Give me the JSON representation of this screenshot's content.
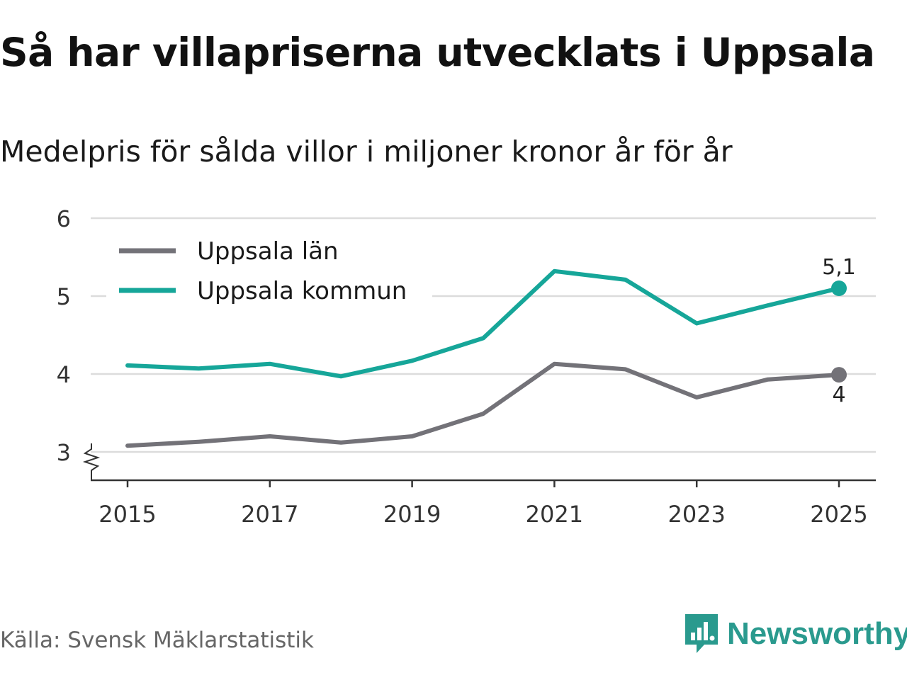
{
  "title": "Så har villapriserna utvecklats i Uppsala",
  "subtitle": "Medelpris för sålda villor i miljoner kronor år för år",
  "source": "Källa: Svensk Mäklarstatistik",
  "brand": {
    "name": "Newsworthy",
    "icon": "newsworthy-logo-icon",
    "color": "#2a9a8e"
  },
  "chart_data": {
    "type": "line",
    "title": "Så har villapriserna utvecklats i Uppsala",
    "subtitle": "Medelpris för sålda villor i miljoner kronor år för år",
    "xlabel": "",
    "ylabel": "",
    "x": [
      2015,
      2016,
      2017,
      2018,
      2019,
      2020,
      2021,
      2022,
      2023,
      2024,
      2025
    ],
    "xticks": [
      2015,
      2017,
      2019,
      2021,
      2023,
      2025
    ],
    "xtick_labels": [
      "2015",
      "2017",
      "2019",
      "2021",
      "2023",
      "2025"
    ],
    "ylim": [
      3,
      6
    ],
    "yticks": [
      3,
      4,
      5,
      6
    ],
    "ytick_labels": [
      "3",
      "4",
      "5",
      "6"
    ],
    "y_axis_break": true,
    "grid": true,
    "legend_position": "top-left",
    "series": [
      {
        "name": "Uppsala län",
        "color": "#737278",
        "values": [
          3.08,
          3.13,
          3.2,
          3.12,
          3.2,
          3.49,
          4.13,
          4.06,
          3.7,
          3.93,
          3.99
        ],
        "end_label": "4",
        "end_label_position": "below"
      },
      {
        "name": "Uppsala kommun",
        "color": "#16a699",
        "values": [
          4.11,
          4.07,
          4.13,
          3.97,
          4.17,
          4.46,
          5.32,
          5.21,
          4.65,
          4.88,
          5.1
        ],
        "end_label": "5,1",
        "end_label_position": "above"
      }
    ]
  }
}
